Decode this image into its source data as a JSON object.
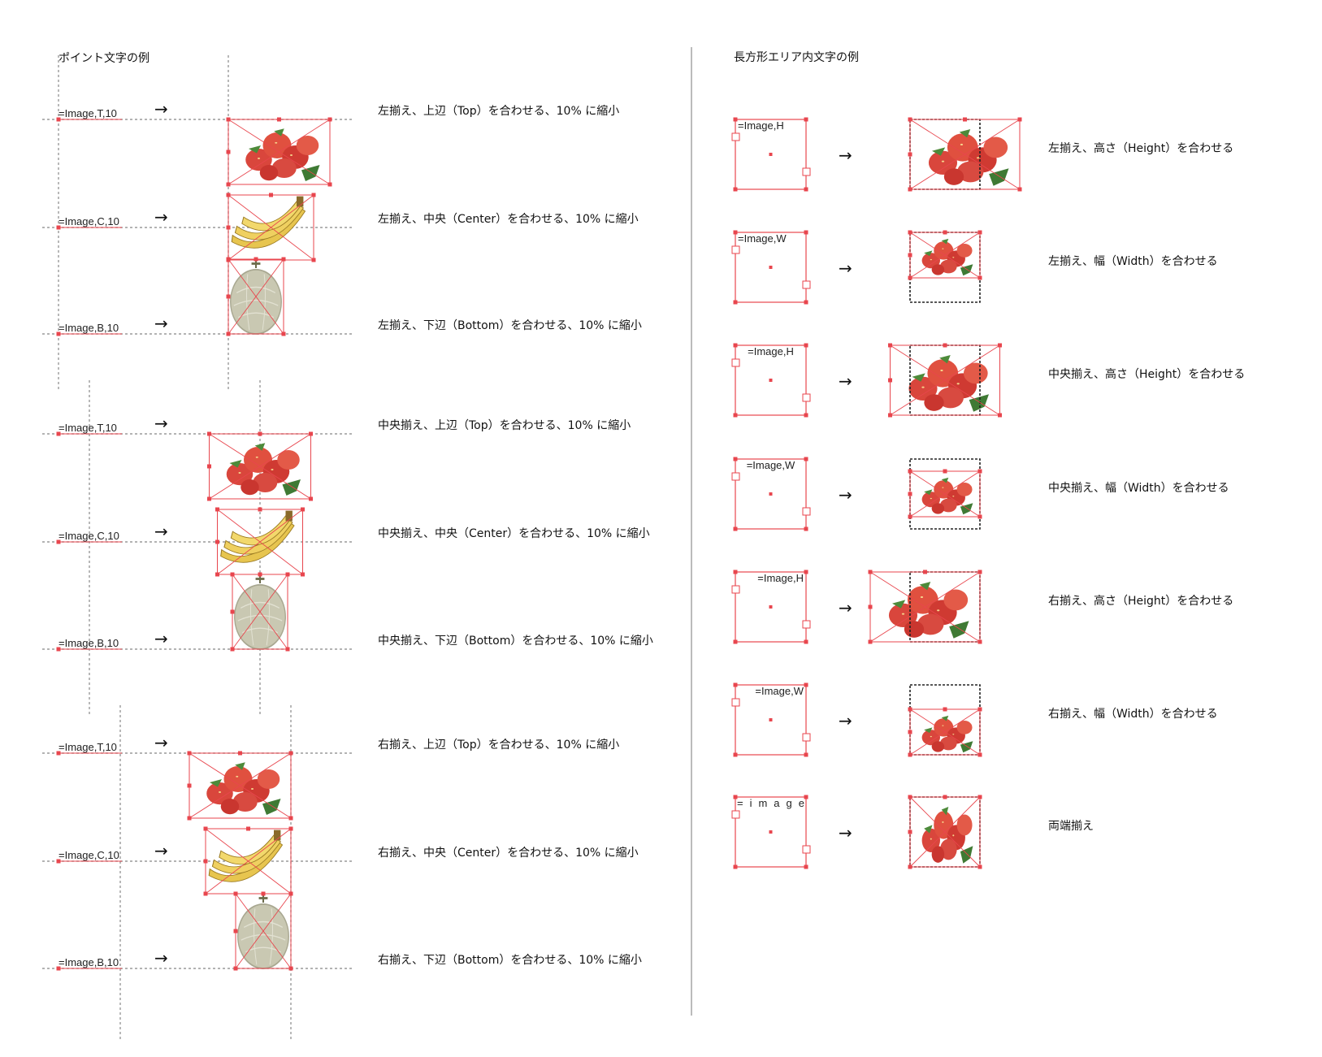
{
  "left_title": "ポイント文字の例",
  "right_title": "長方形エリア内文字の例",
  "point_rows": [
    {
      "code": "=Image,T,10",
      "fruit": "strawberry",
      "desc": "左揃え、上辺（Top）を合わせる、10% に縮小"
    },
    {
      "code": "=Image,C,10",
      "fruit": "banana",
      "desc": "左揃え、中央（Center）を合わせる、10% に縮小"
    },
    {
      "code": "=Image,B,10",
      "fruit": "melon",
      "desc": "左揃え、下辺（Bottom）を合わせる、10% に縮小"
    },
    {
      "code": "=Image,T,10",
      "fruit": "strawberry",
      "desc": "中央揃え、上辺（Top）を合わせる、10% に縮小"
    },
    {
      "code": "=Image,C,10",
      "fruit": "banana",
      "desc": "中央揃え、中央（Center）を合わせる、10% に縮小"
    },
    {
      "code": "=Image,B,10",
      "fruit": "melon",
      "desc": "中央揃え、下辺（Bottom）を合わせる、10% に縮小"
    },
    {
      "code": "=Image,T,10",
      "fruit": "strawberry",
      "desc": "右揃え、上辺（Top）を合わせる、10% に縮小"
    },
    {
      "code": "=Image,C,10",
      "fruit": "banana",
      "desc": "右揃え、中央（Center）を合わせる、10% に縮小"
    },
    {
      "code": "=Image,B,10",
      "fruit": "melon",
      "desc": "右揃え、下辺（Bottom）を合わせる、10% に縮小"
    }
  ],
  "area_rows": [
    {
      "code": "=Image,H",
      "desc": "左揃え、高さ（Height）を合わせる"
    },
    {
      "code": "=Image,W",
      "desc": "左揃え、幅（Width）を合わせる"
    },
    {
      "code": "=Image,H",
      "desc": "中央揃え、高さ（Height）を合わせる"
    },
    {
      "code": "=Image,W",
      "desc": "中央揃え、幅（Width）を合わせる"
    },
    {
      "code": "=Image,H",
      "desc": "右揃え、高さ（Height）を合わせる"
    },
    {
      "code": "=Image,W",
      "desc": "右揃え、幅（Width）を合わせる"
    },
    {
      "code": "= i m a g e",
      "desc": "両端揃え"
    }
  ],
  "arrow": "→",
  "colors": {
    "selection": "#e8464e",
    "guide": "#9a9a9a",
    "divider": "#bbbbbb",
    "dashed_frame": "#222222"
  }
}
